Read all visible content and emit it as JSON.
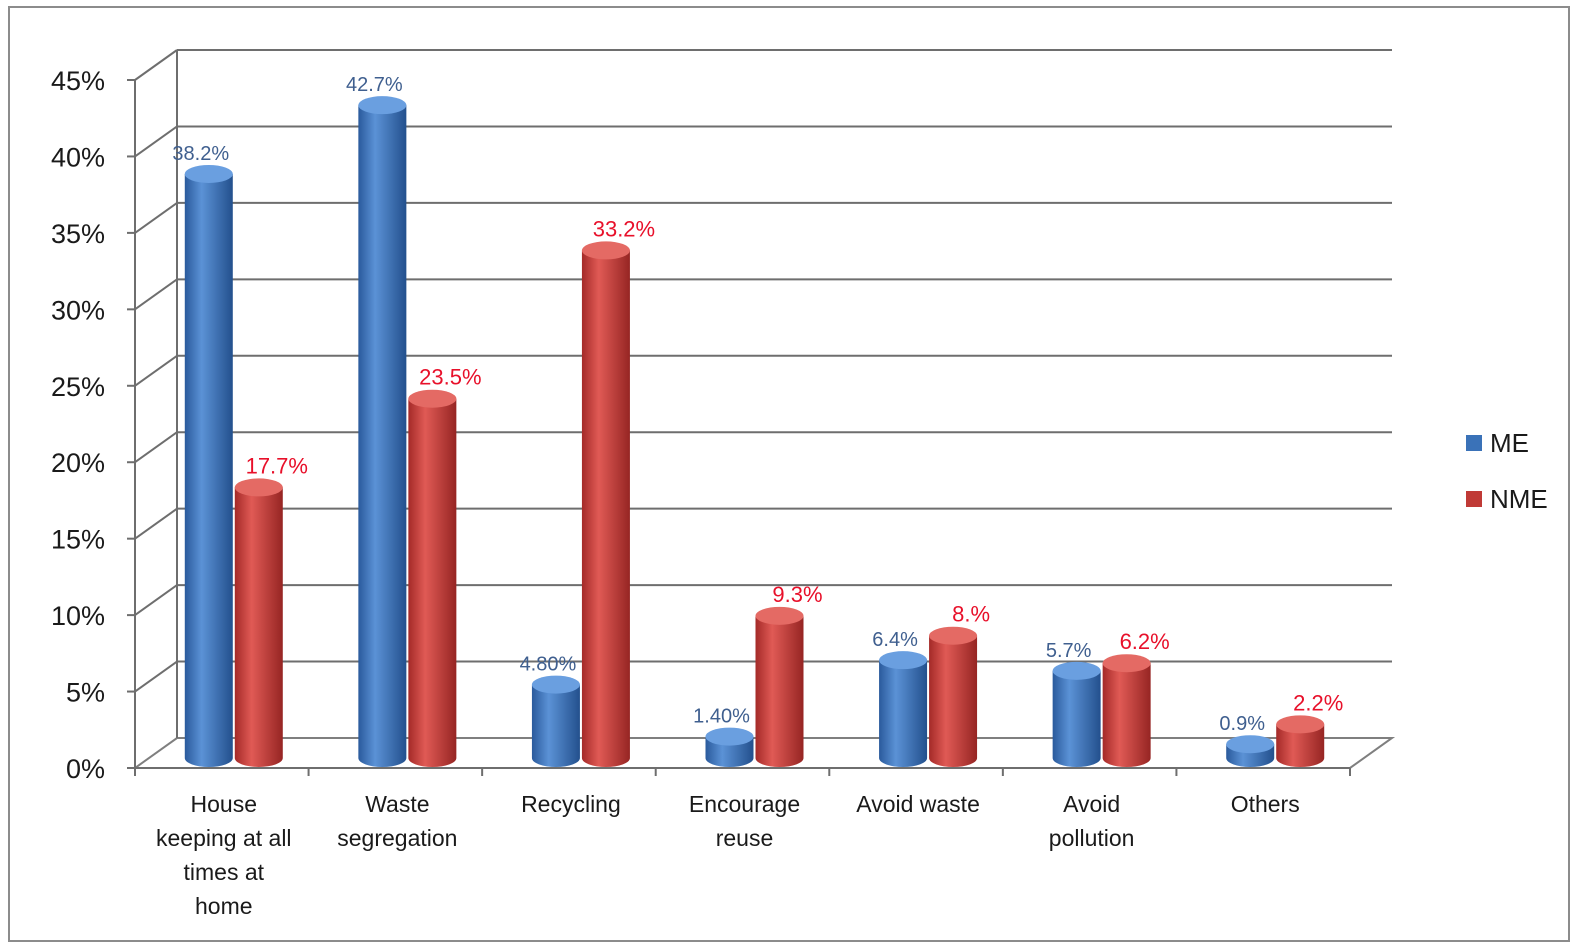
{
  "chart_data": {
    "type": "bar",
    "categories": [
      "House keeping at all times at home",
      "Waste segregation",
      "Recycling",
      "Encourage reuse",
      "Avoid waste",
      "Avoid pollution",
      "Others"
    ],
    "category_label_lines": [
      [
        "House",
        "keeping at all",
        "times at",
        "home"
      ],
      [
        "Waste",
        "segregation"
      ],
      [
        "Recycling"
      ],
      [
        "Encourage",
        "reuse"
      ],
      [
        "Avoid waste"
      ],
      [
        "Avoid",
        "pollution"
      ],
      [
        "Others"
      ]
    ],
    "series": [
      {
        "name": "ME",
        "color": "#3a72b8",
        "values": [
          38.2,
          42.7,
          4.8,
          1.4,
          6.4,
          5.7,
          0.9
        ],
        "labels": [
          "38.2%",
          "42.7%",
          "4.80%",
          "1.40%",
          "6.4%",
          "5.7%",
          "0.9%"
        ]
      },
      {
        "name": "NME",
        "color": "#c03a36",
        "values": [
          17.7,
          23.5,
          33.2,
          9.3,
          8.0,
          6.2,
          2.2
        ],
        "labels": [
          "17.7%",
          "23.5%",
          "33.2%",
          "9.3%",
          "8.%",
          "6.2%",
          "2.2%"
        ]
      }
    ],
    "y_ticks": [
      "0%",
      "5%",
      "10%",
      "15%",
      "20%",
      "25%",
      "30%",
      "35%",
      "40%",
      "45%"
    ],
    "ylim": [
      0,
      45
    ],
    "grid": true,
    "legend_position": "right",
    "title": "",
    "xlabel": "",
    "ylabel": ""
  }
}
